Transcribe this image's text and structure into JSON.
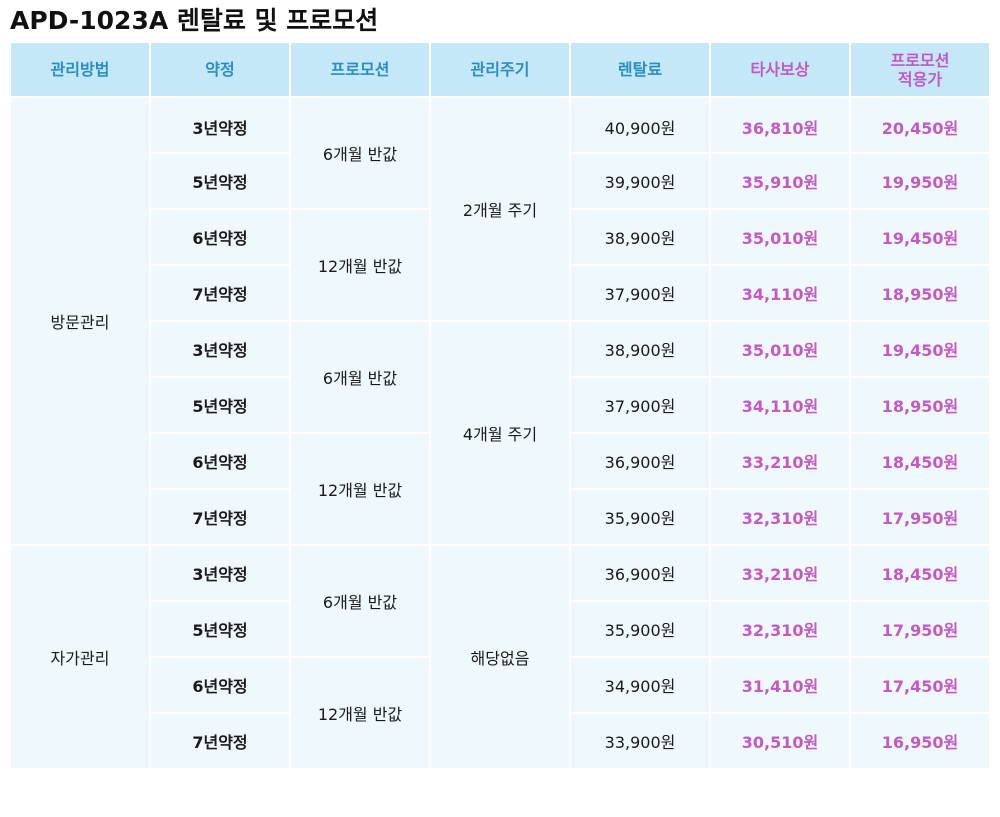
{
  "title": "APD-1023A 렌탈료 및 프로모션",
  "headers": [
    "관리방법",
    "약정",
    "프로모션",
    "관리주기",
    "렌탈료",
    "타사보상",
    "프로모션\n적용가"
  ],
  "methods": [
    "방문관리",
    "자가관리"
  ],
  "promotions": [
    "6개월 반값",
    "12개월 반값"
  ],
  "cycles": [
    "2개월 주기",
    "4개월 주기",
    "해당없음"
  ],
  "rows": [
    {
      "term": "3년약정",
      "fee": "40,900원",
      "comp": "36,810원",
      "promo": "20,450원"
    },
    {
      "term": "5년약정",
      "fee": "39,900원",
      "comp": "35,910원",
      "promo": "19,950원"
    },
    {
      "term": "6년약정",
      "fee": "38,900원",
      "comp": "35,010원",
      "promo": "19,450원"
    },
    {
      "term": "7년약정",
      "fee": "37,900원",
      "comp": "34,110원",
      "promo": "18,950원"
    },
    {
      "term": "3년약정",
      "fee": "38,900원",
      "comp": "35,010원",
      "promo": "19,450원"
    },
    {
      "term": "5년약정",
      "fee": "37,900원",
      "comp": "34,110원",
      "promo": "18,950원"
    },
    {
      "term": "6년약정",
      "fee": "36,900원",
      "comp": "33,210원",
      "promo": "18,450원"
    },
    {
      "term": "7년약정",
      "fee": "35,900원",
      "comp": "32,310원",
      "promo": "17,950원"
    },
    {
      "term": "3년약정",
      "fee": "36,900원",
      "comp": "33,210원",
      "promo": "18,450원"
    },
    {
      "term": "5년약정",
      "fee": "35,900원",
      "comp": "32,310원",
      "promo": "17,950원"
    },
    {
      "term": "6년약정",
      "fee": "34,900원",
      "comp": "31,410원",
      "promo": "17,450원"
    },
    {
      "term": "7년약정",
      "fee": "33,900원",
      "comp": "30,510원",
      "promo": "16,950원"
    }
  ],
  "colors": {
    "header_bg": "#c4e8f8",
    "header_text": "#2a8fc0",
    "accent_purple": "#c25ac2",
    "cell_bg": "#eff8fc"
  }
}
